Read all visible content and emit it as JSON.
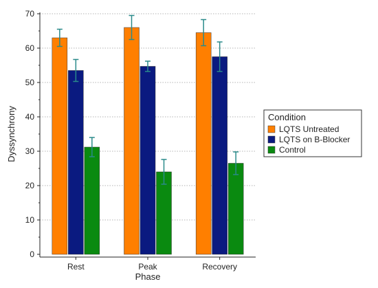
{
  "chart_data": {
    "type": "bar",
    "title": "",
    "xlabel": "Phase",
    "ylabel": "Dyssynchrony",
    "categories": [
      "Rest",
      "Peak",
      "Recovery"
    ],
    "ylim": [
      0,
      70
    ],
    "yticks": [
      "0",
      "10",
      "20",
      "30",
      "40",
      "50",
      "60",
      "70"
    ],
    "grid": "horizontal dotted",
    "legend": {
      "title": "Condition",
      "placement": "right"
    },
    "error_bar_color": "#2a8a8a",
    "series": [
      {
        "name": "LQTS Untreated",
        "color": "#ff7f00",
        "values": [
          63.0,
          66.0,
          64.5
        ],
        "errors": [
          2.5,
          3.5,
          3.8
        ]
      },
      {
        "name": "LQTS on B-Blocker",
        "color": "#0a1a80",
        "values": [
          53.5,
          54.7,
          57.5
        ],
        "errors": [
          3.2,
          1.5,
          4.3
        ]
      },
      {
        "name": "Control",
        "color": "#0a8a10",
        "values": [
          31.2,
          24.0,
          26.5
        ],
        "errors": [
          2.8,
          3.6,
          3.3
        ]
      }
    ]
  }
}
